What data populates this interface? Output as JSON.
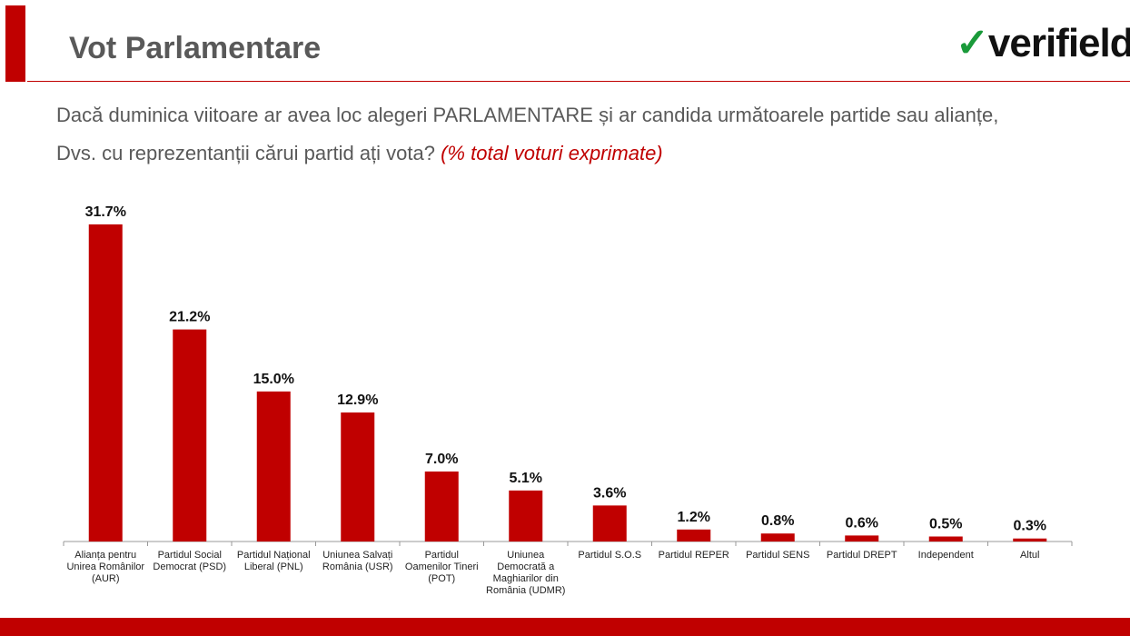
{
  "header": {
    "title": "Vot Parlamentare",
    "logo_text": "verifield"
  },
  "question": {
    "line1": "Dacă duminica viitoare ar avea loc alegeri PARLAMENTARE și ar candida următoarele partide sau alianțe,",
    "line2": "Dvs. cu reprezentanții cărui partid ați vota?",
    "note": "(% total voturi exprimate)"
  },
  "colors": {
    "accent": "#c00000",
    "bar": "#c00000",
    "logo_green": "#1a9a3a"
  },
  "chart_data": {
    "type": "bar",
    "title": "",
    "xlabel": "",
    "ylabel": "",
    "ylim": [
      0,
      31.7
    ],
    "grid": false,
    "categories": [
      [
        "Alianța pentru",
        "Unirea Românilor",
        "(AUR)"
      ],
      [
        "Partidul Social",
        "Democrat (PSD)"
      ],
      [
        "Partidul Național",
        "Liberal (PNL)"
      ],
      [
        "Uniunea Salvați",
        "România (USR)"
      ],
      [
        "Partidul",
        "Oamenilor Tineri",
        "(POT)"
      ],
      [
        "Uniunea",
        "Democrată a",
        "Maghiarilor din",
        "România (UDMR)"
      ],
      [
        "Partidul S.O.S"
      ],
      [
        "Partidul REPER"
      ],
      [
        "Partidul SENS"
      ],
      [
        "Partidul DREPT"
      ],
      [
        "Independent"
      ],
      [
        "Altul"
      ]
    ],
    "values": [
      31.7,
      21.2,
      15.0,
      12.9,
      7.0,
      5.1,
      3.6,
      1.2,
      0.8,
      0.6,
      0.5,
      0.3
    ],
    "value_labels": [
      "31.7%",
      "21.2%",
      "15.0%",
      "12.9%",
      "7.0%",
      "5.1%",
      "3.6%",
      "1.2%",
      "0.8%",
      "0.6%",
      "0.5%",
      "0.3%"
    ]
  }
}
